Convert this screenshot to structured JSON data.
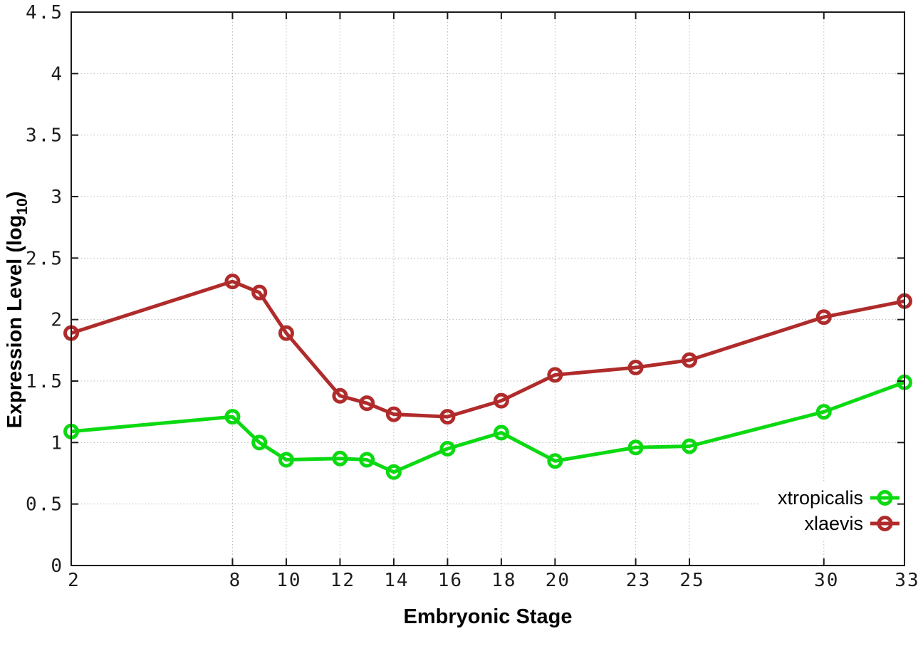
{
  "chart_data": {
    "type": "line",
    "title": "",
    "xlabel": "Embryonic Stage",
    "ylabel": "Expression Level (log10)",
    "ylabel_parts": {
      "prefix": "Expression Level (log",
      "sub": "10",
      "suffix": ")"
    },
    "xlim": [
      2,
      33
    ],
    "ylim": [
      0,
      4.5
    ],
    "xticks": [
      2,
      8,
      10,
      12,
      14,
      16,
      18,
      20,
      23,
      25,
      30,
      33
    ],
    "xtick_labels": [
      "2",
      "8",
      "10",
      "12",
      "14",
      "16",
      "18",
      "20",
      "23",
      "25",
      "30",
      "33"
    ],
    "yticks": [
      0,
      0.5,
      1,
      1.5,
      2,
      2.5,
      3,
      3.5,
      4,
      4.5
    ],
    "ytick_labels": [
      "0",
      "0.5",
      "1",
      "1.5",
      "2",
      "2.5",
      "3",
      "3.5",
      "4",
      "4.5"
    ],
    "grid": true,
    "legend_position": "inside-right-lower",
    "series": [
      {
        "name": "xtropicalis",
        "color": "#0cd912",
        "x": [
          2,
          8,
          9,
          10,
          12,
          13,
          14,
          16,
          18,
          20,
          23,
          25,
          30,
          33
        ],
        "values": [
          1.09,
          1.21,
          1.0,
          0.86,
          0.87,
          0.86,
          0.76,
          0.95,
          1.08,
          0.85,
          0.96,
          0.97,
          1.25,
          1.49
        ]
      },
      {
        "name": "xlaevis",
        "color": "#b02b2b",
        "x": [
          2,
          8,
          9,
          10,
          12,
          13,
          14,
          16,
          18,
          20,
          23,
          25,
          30,
          33
        ],
        "values": [
          1.89,
          2.31,
          2.22,
          1.89,
          1.38,
          1.32,
          1.23,
          1.21,
          1.34,
          1.55,
          1.61,
          1.67,
          2.02,
          2.15
        ]
      }
    ]
  }
}
